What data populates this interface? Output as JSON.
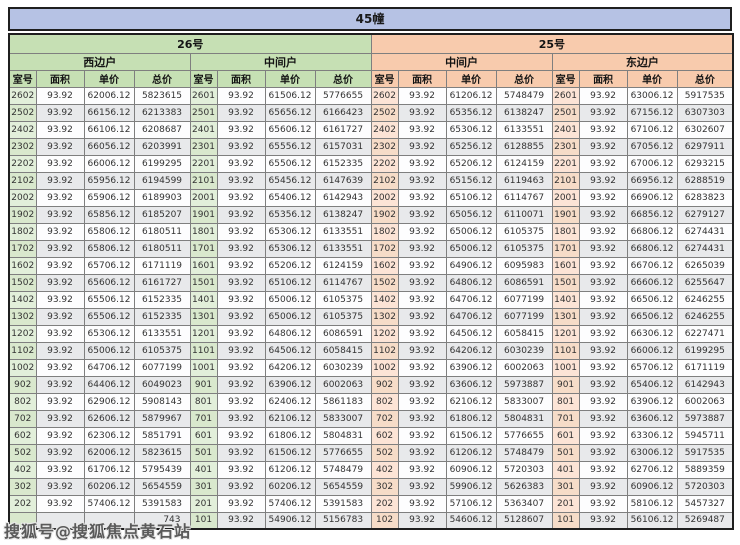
{
  "chart_data": {
    "type": "table",
    "title": "45幢",
    "sections": [
      {
        "name": "26号",
        "units": [
          "西边户",
          "中间户"
        ]
      },
      {
        "name": "25号",
        "units": [
          "中间户",
          "东边户"
        ]
      }
    ],
    "column_headers": [
      "室号",
      "面积",
      "单价",
      "总价"
    ],
    "rows": [
      [
        "2602",
        "93.92",
        "62006.12",
        "5823615",
        "2601",
        "93.92",
        "61506.12",
        "5776655",
        "2602",
        "93.92",
        "61206.12",
        "5748479",
        "2601",
        "93.92",
        "63006.12",
        "5917535"
      ],
      [
        "2502",
        "93.92",
        "66156.12",
        "6213383",
        "2501",
        "93.92",
        "65656.12",
        "6166423",
        "2502",
        "93.92",
        "65356.12",
        "6138247",
        "2501",
        "93.92",
        "67156.12",
        "6307303"
      ],
      [
        "2402",
        "93.92",
        "66106.12",
        "6208687",
        "2401",
        "93.92",
        "65606.12",
        "6161727",
        "2402",
        "93.92",
        "65306.12",
        "6133551",
        "2401",
        "93.92",
        "67106.12",
        "6302607"
      ],
      [
        "2302",
        "93.92",
        "66056.12",
        "6203991",
        "2301",
        "93.92",
        "65556.12",
        "6157031",
        "2302",
        "93.92",
        "65256.12",
        "6128855",
        "2301",
        "93.92",
        "67056.12",
        "6297911"
      ],
      [
        "2202",
        "93.92",
        "66006.12",
        "6199295",
        "2201",
        "93.92",
        "65506.12",
        "6152335",
        "2202",
        "93.92",
        "65206.12",
        "6124159",
        "2201",
        "93.92",
        "67006.12",
        "6293215"
      ],
      [
        "2102",
        "93.92",
        "65956.12",
        "6194599",
        "2101",
        "93.92",
        "65456.12",
        "6147639",
        "2102",
        "93.92",
        "65156.12",
        "6119463",
        "2101",
        "93.92",
        "66956.12",
        "6288519"
      ],
      [
        "2002",
        "93.92",
        "65906.12",
        "6189903",
        "2001",
        "93.92",
        "65406.12",
        "6142943",
        "2002",
        "93.92",
        "65106.12",
        "6114767",
        "2001",
        "93.92",
        "66906.12",
        "6283823"
      ],
      [
        "1902",
        "93.92",
        "65856.12",
        "6185207",
        "1901",
        "93.92",
        "65356.12",
        "6138247",
        "1902",
        "93.92",
        "65056.12",
        "6110071",
        "1901",
        "93.92",
        "66856.12",
        "6279127"
      ],
      [
        "1802",
        "93.92",
        "65806.12",
        "6180511",
        "1801",
        "93.92",
        "65306.12",
        "6133551",
        "1802",
        "93.92",
        "65006.12",
        "6105375",
        "1801",
        "93.92",
        "66806.12",
        "6274431"
      ],
      [
        "1702",
        "93.92",
        "65806.12",
        "6180511",
        "1701",
        "93.92",
        "65306.12",
        "6133551",
        "1702",
        "93.92",
        "65006.12",
        "6105375",
        "1701",
        "93.92",
        "66806.12",
        "6274431"
      ],
      [
        "1602",
        "93.92",
        "65706.12",
        "6171119",
        "1601",
        "93.92",
        "65206.12",
        "6124159",
        "1602",
        "93.92",
        "64906.12",
        "6095983",
        "1601",
        "93.92",
        "66706.12",
        "6265039"
      ],
      [
        "1502",
        "93.92",
        "65606.12",
        "6161727",
        "1501",
        "93.92",
        "65106.12",
        "6114767",
        "1502",
        "93.92",
        "64806.12",
        "6086591",
        "1501",
        "93.92",
        "66606.12",
        "6255647"
      ],
      [
        "1402",
        "93.92",
        "65506.12",
        "6152335",
        "1401",
        "93.92",
        "65006.12",
        "6105375",
        "1402",
        "93.92",
        "64706.12",
        "6077199",
        "1401",
        "93.92",
        "66506.12",
        "6246255"
      ],
      [
        "1302",
        "93.92",
        "65506.12",
        "6152335",
        "1301",
        "93.92",
        "65006.12",
        "6105375",
        "1302",
        "93.92",
        "64706.12",
        "6077199",
        "1301",
        "93.92",
        "66506.12",
        "6246255"
      ],
      [
        "1202",
        "93.92",
        "65306.12",
        "6133551",
        "1201",
        "93.92",
        "64806.12",
        "6086591",
        "1202",
        "93.92",
        "64506.12",
        "6058415",
        "1201",
        "93.92",
        "66306.12",
        "6227471"
      ],
      [
        "1102",
        "93.92",
        "65006.12",
        "6105375",
        "1101",
        "93.92",
        "64506.12",
        "6058415",
        "1102",
        "93.92",
        "64206.12",
        "6030239",
        "1101",
        "93.92",
        "66006.12",
        "6199295"
      ],
      [
        "1002",
        "93.92",
        "64706.12",
        "6077199",
        "1001",
        "93.92",
        "64206.12",
        "6030239",
        "1002",
        "93.92",
        "63906.12",
        "6002063",
        "1001",
        "93.92",
        "65706.12",
        "6171119"
      ],
      [
        "902",
        "93.92",
        "64406.12",
        "6049023",
        "901",
        "93.92",
        "63906.12",
        "6002063",
        "902",
        "93.92",
        "63606.12",
        "5973887",
        "901",
        "93.92",
        "65406.12",
        "6142943"
      ],
      [
        "802",
        "93.92",
        "62906.12",
        "5908143",
        "801",
        "93.92",
        "62406.12",
        "5861183",
        "802",
        "93.92",
        "62106.12",
        "5833007",
        "801",
        "93.92",
        "63906.12",
        "6002063"
      ],
      [
        "702",
        "93.92",
        "62606.12",
        "5879967",
        "701",
        "93.92",
        "62106.12",
        "5833007",
        "702",
        "93.92",
        "61806.12",
        "5804831",
        "701",
        "93.92",
        "63606.12",
        "5973887"
      ],
      [
        "602",
        "93.92",
        "62306.12",
        "5851791",
        "601",
        "93.92",
        "61806.12",
        "5804831",
        "602",
        "93.92",
        "61506.12",
        "5776655",
        "601",
        "93.92",
        "63306.12",
        "5945711"
      ],
      [
        "502",
        "93.92",
        "62006.12",
        "5823615",
        "501",
        "93.92",
        "61506.12",
        "5776655",
        "502",
        "93.92",
        "61206.12",
        "5748479",
        "501",
        "93.92",
        "63006.12",
        "5917535"
      ],
      [
        "402",
        "93.92",
        "61706.12",
        "5795439",
        "401",
        "93.92",
        "61206.12",
        "5748479",
        "402",
        "93.92",
        "60906.12",
        "5720303",
        "401",
        "93.92",
        "62706.12",
        "5889359"
      ],
      [
        "302",
        "93.92",
        "60206.12",
        "5654559",
        "301",
        "93.92",
        "60206.12",
        "5654559",
        "302",
        "93.92",
        "59906.12",
        "5626383",
        "301",
        "93.92",
        "60906.12",
        "5720303"
      ],
      [
        "202",
        "93.92",
        "57406.12",
        "5391583",
        "201",
        "93.92",
        "57406.12",
        "5391583",
        "202",
        "93.92",
        "57106.12",
        "5363407",
        "201",
        "93.92",
        "58106.12",
        "5457327"
      ],
      [
        "",
        "",
        "",
        "743",
        "101",
        "93.92",
        "54906.12",
        "5156783",
        "102",
        "93.92",
        "54606.12",
        "5128607",
        "101",
        "93.92",
        "56106.12",
        "5269487"
      ]
    ]
  },
  "watermark": "搜狐号@搜狐焦点黄石站",
  "colors": {
    "title_bg": "#b6c2e4",
    "section_26_bg": "#c6e0b4",
    "section_25_bg": "#f8cbad",
    "room_col_green": "#e2efda",
    "room_col_orange": "#fce4d6",
    "row_band": "#e8e9eb"
  }
}
